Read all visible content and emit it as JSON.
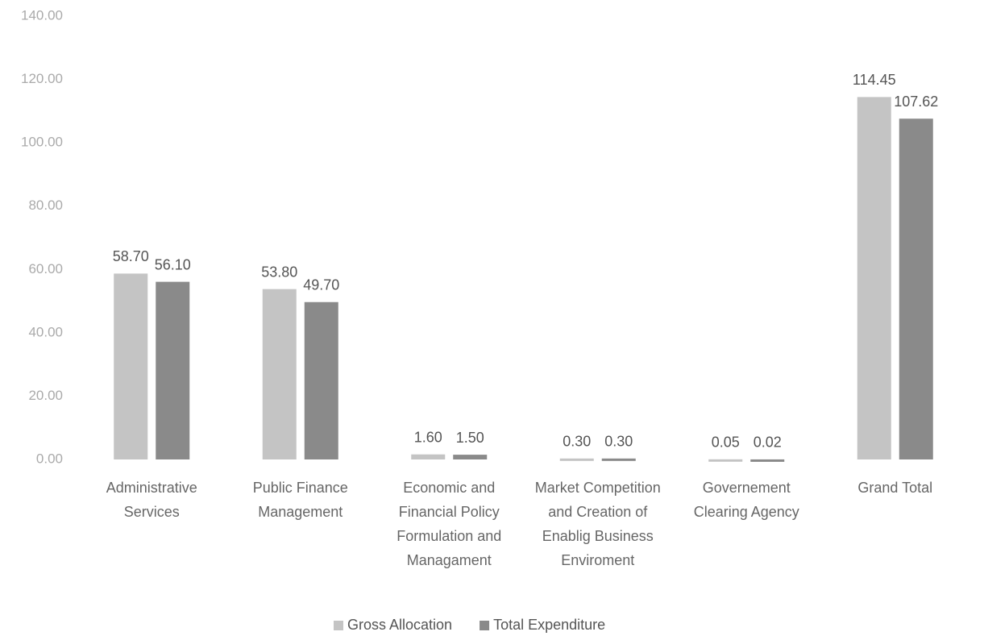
{
  "chart_data": {
    "type": "bar",
    "categories": [
      "Administrative Services",
      "Public Finance Management",
      "Economic and Financial Policy Formulation and Managament",
      "Market Competition and Creation of Enablig Business Enviroment",
      "Governement Clearing Agency",
      "Grand Total"
    ],
    "series": [
      {
        "name": "Gross Allocation",
        "color": "#c4c4c4",
        "values": [
          58.7,
          53.8,
          1.6,
          0.3,
          0.05,
          114.45
        ],
        "value_labels": [
          "58.70",
          "53.80",
          "1.60",
          "0.30",
          "0.05",
          "114.45"
        ]
      },
      {
        "name": "Total Expenditure",
        "color": "#8a8a8a",
        "values": [
          56.1,
          49.7,
          1.5,
          0.3,
          0.02,
          107.62
        ],
        "value_labels": [
          "56.10",
          "49.70",
          "1.50",
          "0.30",
          "0.02",
          "107.62"
        ]
      }
    ],
    "ylim": [
      0,
      140
    ],
    "yticks": [
      {
        "value": 0,
        "label": "0.00"
      },
      {
        "value": 20,
        "label": "20.00"
      },
      {
        "value": 40,
        "label": "40.00"
      },
      {
        "value": 60,
        "label": "60.00"
      },
      {
        "value": 80,
        "label": "80.00"
      },
      {
        "value": 100,
        "label": "100.00"
      },
      {
        "value": 120,
        "label": "120.00"
      },
      {
        "value": 140,
        "label": "140.00"
      }
    ],
    "legend": "bottom"
  }
}
